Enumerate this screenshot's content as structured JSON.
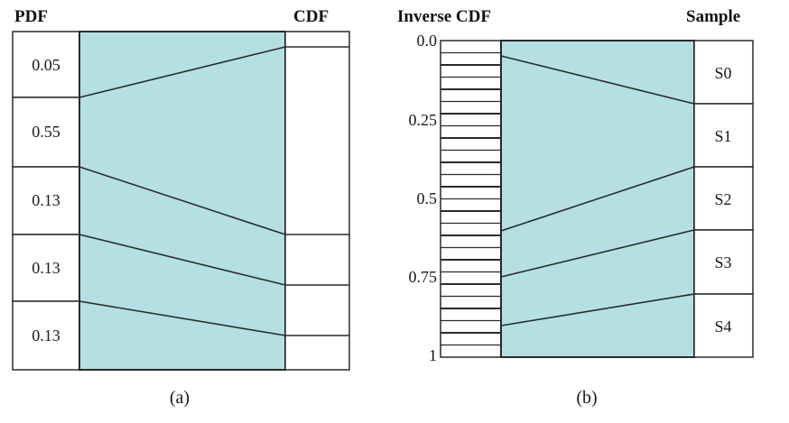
{
  "panel_a": {
    "header_left": "PDF",
    "header_right": "CDF",
    "pdf_values": [
      "0.05",
      "0.55",
      "0.13",
      "0.13",
      "0.13"
    ],
    "caption": "(a)"
  },
  "panel_b": {
    "header_left": "Inverse CDF",
    "header_right": "Sample",
    "axis_ticks": [
      "0.0",
      "0.25",
      "0.5",
      "0.75",
      "1"
    ],
    "samples": [
      "S0",
      "S1",
      "S2",
      "S3",
      "S4"
    ],
    "caption": "(b)"
  },
  "colors": {
    "fill": "#b5dfe3",
    "stroke": "#2a2a2a"
  }
}
